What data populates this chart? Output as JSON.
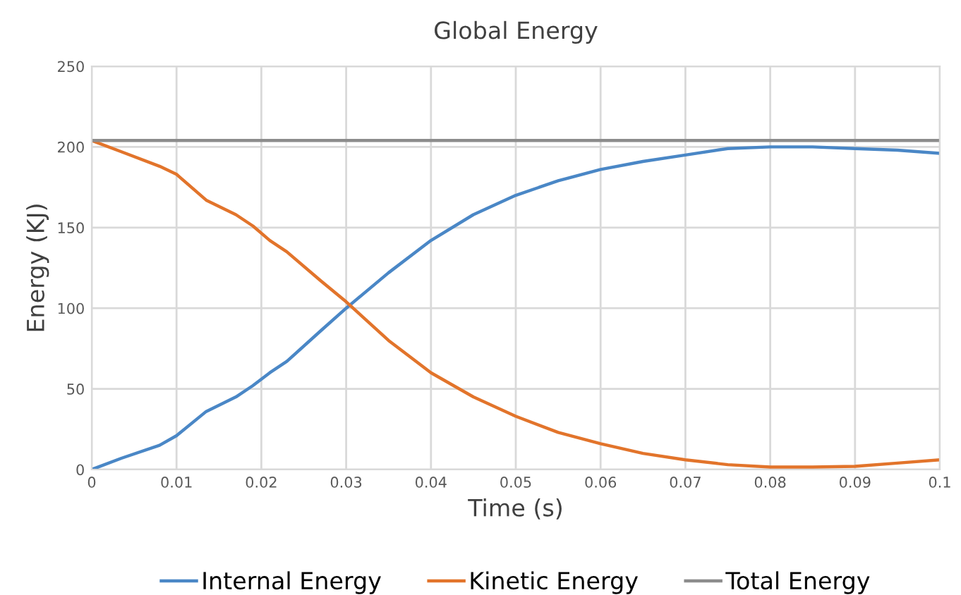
{
  "chart_data": {
    "type": "line",
    "title": "Global Energy",
    "xlabel": "Time (s)",
    "ylabel": "Energy (KJ)",
    "x": [
      0,
      0.0035,
      0.008,
      0.01,
      0.0135,
      0.017,
      0.019,
      0.021,
      0.023,
      0.027,
      0.03,
      0.035,
      0.04,
      0.045,
      0.05,
      0.055,
      0.06,
      0.065,
      0.07,
      0.075,
      0.08,
      0.085,
      0.09,
      0.095,
      0.1
    ],
    "series": [
      {
        "name": "Internal Energy",
        "color": "#4a87c6",
        "values": [
          0,
          7,
          15,
          21,
          36,
          45,
          52,
          60,
          67,
          86,
          100,
          122,
          142,
          158,
          170,
          179,
          186,
          191,
          195,
          199,
          200,
          200,
          199,
          198,
          196
        ]
      },
      {
        "name": "Kinetic Energy",
        "color": "#e2742b",
        "values": [
          204,
          197,
          188,
          183,
          167,
          158,
          151,
          142,
          135,
          117,
          104,
          80,
          60,
          45,
          33,
          23,
          16,
          10,
          6,
          3,
          1.5,
          1.5,
          2,
          4,
          6
        ]
      },
      {
        "name": "Total Energy",
        "color": "#8c8c8c",
        "values": [
          204,
          204,
          204,
          204,
          204,
          204,
          204,
          204,
          204,
          204,
          204,
          204,
          204,
          204,
          204,
          204,
          204,
          204,
          204,
          204,
          204,
          204,
          204,
          204,
          204
        ]
      }
    ],
    "xlim": [
      0,
      0.1
    ],
    "xticks": [
      0,
      0.01,
      0.02,
      0.03,
      0.04,
      0.05,
      0.06,
      0.07,
      0.08,
      0.09,
      0.1
    ],
    "ylim": [
      0,
      250
    ],
    "yticks": [
      0,
      50,
      100,
      150,
      200,
      250
    ],
    "grid": true,
    "legend": "bottom",
    "marker": "none",
    "line_style": "solid"
  }
}
